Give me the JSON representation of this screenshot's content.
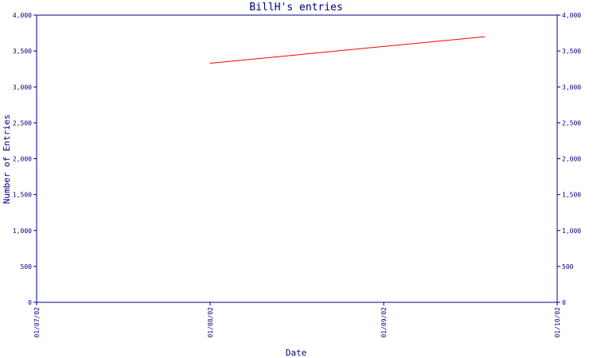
{
  "chart_data": {
    "type": "line",
    "title": "BillH's entries",
    "xlabel": "Date",
    "ylabel": "Number of Entries",
    "x_ticks": [
      "01/07/02",
      "01/08/02",
      "01/09/02",
      "01/10/02"
    ],
    "y_ticks": [
      "0",
      "500",
      "1,000",
      "1,500",
      "2,000",
      "2,500",
      "3,000",
      "3,500",
      "4,000"
    ],
    "ylim": [
      0,
      4000
    ],
    "xlim": [
      "01/07/02",
      "01/10/02"
    ],
    "y_axis_right_labels": true,
    "grid": false,
    "series": [
      {
        "color": "#ff0000",
        "points": [
          {
            "x": "01/08/02",
            "y": 3330
          },
          {
            "x": "01/09/02 14:00",
            "y": 3700
          }
        ]
      }
    ]
  }
}
